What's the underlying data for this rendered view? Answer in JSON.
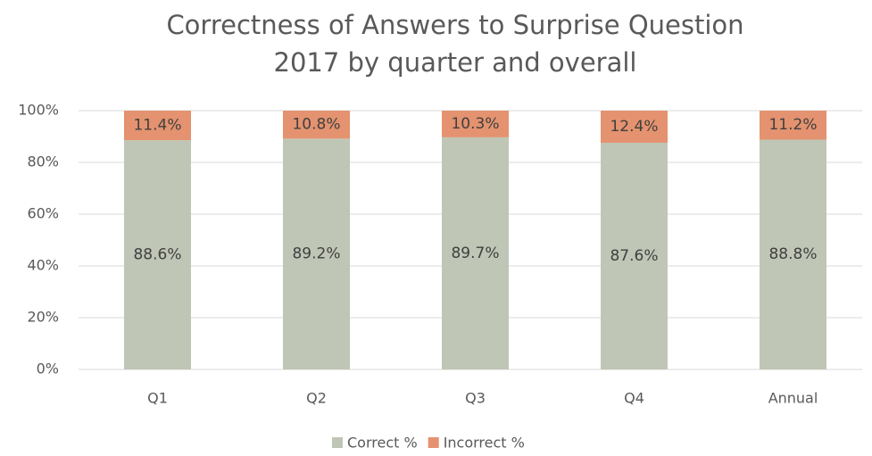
{
  "chart_data": {
    "type": "stacked_bar",
    "title": "Correctness of Answers to Surprise Question",
    "subtitle": "2017 by quarter and overall",
    "categories": [
      "Q1",
      "Q2",
      "Q3",
      "Q4",
      "Annual"
    ],
    "series": [
      {
        "name": "Correct %",
        "color": "#bfc6b5",
        "values": [
          88.6,
          89.2,
          89.7,
          87.6,
          88.8
        ],
        "value_labels": [
          "88.6%",
          "89.2%",
          "89.7%",
          "87.6%",
          "88.8%"
        ]
      },
      {
        "name": "Incorrect %",
        "color": "#e4926f",
        "values": [
          11.4,
          10.8,
          10.3,
          12.4,
          11.2
        ],
        "value_labels": [
          "11.4%",
          "10.8%",
          "10.3%",
          "12.4%",
          "11.2%"
        ]
      }
    ],
    "ylim": [
      0,
      100
    ],
    "yticks": [
      {
        "value": 0,
        "label": "0%"
      },
      {
        "value": 20,
        "label": "20%"
      },
      {
        "value": 40,
        "label": "40%"
      },
      {
        "value": 60,
        "label": "60%"
      },
      {
        "value": 80,
        "label": "80%"
      },
      {
        "value": 100,
        "label": "100%"
      }
    ],
    "grid": true,
    "legend": "bottom"
  }
}
